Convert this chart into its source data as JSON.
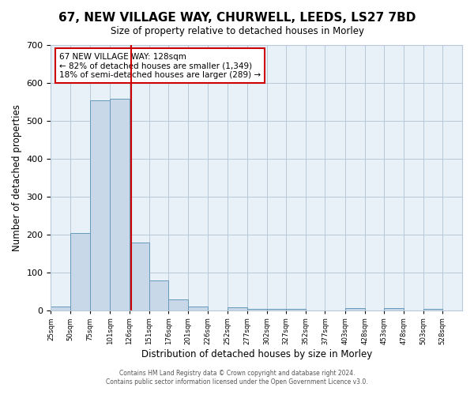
{
  "title": "67, NEW VILLAGE WAY, CHURWELL, LEEDS, LS27 7BD",
  "subtitle": "Size of property relative to detached houses in Morley",
  "xlabel": "Distribution of detached houses by size in Morley",
  "ylabel": "Number of detached properties",
  "bin_labels": [
    "25sqm",
    "50sqm",
    "75sqm",
    "101sqm",
    "126sqm",
    "151sqm",
    "176sqm",
    "201sqm",
    "226sqm",
    "252sqm",
    "277sqm",
    "302sqm",
    "327sqm",
    "352sqm",
    "377sqm",
    "403sqm",
    "428sqm",
    "453sqm",
    "478sqm",
    "503sqm",
    "528sqm"
  ],
  "bar_values": [
    10,
    203,
    553,
    558,
    178,
    78,
    28,
    10,
    0,
    8,
    3,
    3,
    3,
    0,
    0,
    5,
    0,
    5,
    0,
    4
  ],
  "bar_color": "#c8d8e8",
  "bar_edgecolor": "#6699bb",
  "vline_x": 128,
  "vline_color": "#cc0000",
  "ylim": [
    0,
    700
  ],
  "yticks": [
    0,
    100,
    200,
    300,
    400,
    500,
    600,
    700
  ],
  "annotation_title": "67 NEW VILLAGE WAY: 128sqm",
  "annotation_line1": "← 82% of detached houses are smaller (1,349)",
  "annotation_line2": "18% of semi-detached houses are larger (289) →",
  "annotation_box_color": "#ffffff",
  "annotation_box_edgecolor": "#cc0000",
  "footer_line1": "Contains HM Land Registry data © Crown copyright and database right 2024.",
  "footer_line2": "Contains public sector information licensed under the Open Government Licence v3.0.",
  "bin_edges": [
    25,
    50,
    75,
    101,
    126,
    151,
    176,
    201,
    226,
    252,
    277,
    302,
    327,
    352,
    377,
    403,
    428,
    453,
    478,
    503,
    528
  ],
  "background_color": "#ffffff",
  "plot_bg_color": "#e8f0f8"
}
